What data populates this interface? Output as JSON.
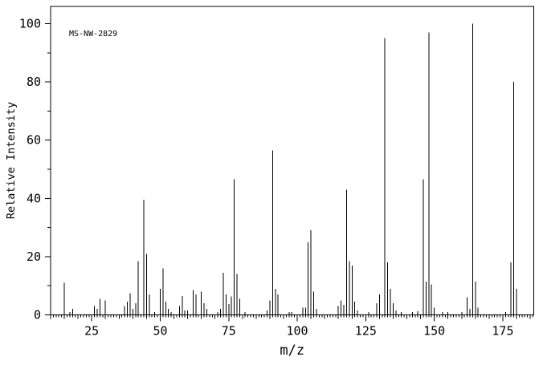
{
  "chart_data": {
    "type": "bar",
    "style": "mass-spectrum-stick-plot",
    "title": "",
    "annotation": "MS-NW-2829",
    "xlabel": "m/z",
    "ylabel": "Relative Intensity",
    "xlim": [
      10,
      186.3
    ],
    "ylim": [
      0,
      100
    ],
    "x_major_ticks": [
      25,
      50,
      75,
      100,
      125,
      150,
      175
    ],
    "x_minor_tick_step": 1,
    "x_medium_tick_step": 5,
    "y_major_ticks": [
      0,
      20,
      40,
      60,
      80,
      100
    ],
    "y_minor_tick_step": 10,
    "grid": false,
    "legend": null,
    "colors": {
      "line": "#000000",
      "background": "#ffffff"
    },
    "peaks": [
      [
        15,
        11
      ],
      [
        17,
        1
      ],
      [
        18,
        2
      ],
      [
        26,
        3
      ],
      [
        27,
        2
      ],
      [
        28,
        5.5
      ],
      [
        30,
        5
      ],
      [
        37,
        3
      ],
      [
        38,
        4.5
      ],
      [
        39,
        7.5
      ],
      [
        40,
        2
      ],
      [
        41,
        4
      ],
      [
        42,
        18.5
      ],
      [
        44,
        39.5
      ],
      [
        45,
        21
      ],
      [
        46,
        7
      ],
      [
        48,
        1
      ],
      [
        50,
        9
      ],
      [
        51,
        16
      ],
      [
        52,
        4.5
      ],
      [
        53,
        2
      ],
      [
        54,
        1
      ],
      [
        57,
        3
      ],
      [
        58,
        6.5
      ],
      [
        59,
        1.5
      ],
      [
        60,
        1.5
      ],
      [
        62,
        8.5
      ],
      [
        63,
        7
      ],
      [
        65,
        8
      ],
      [
        66,
        4
      ],
      [
        67,
        2
      ],
      [
        71,
        1
      ],
      [
        72,
        2
      ],
      [
        73,
        14.5
      ],
      [
        74,
        7
      ],
      [
        75,
        3.7
      ],
      [
        76,
        6.3
      ],
      [
        77,
        46.5
      ],
      [
        78,
        14
      ],
      [
        79,
        5.5
      ],
      [
        81,
        1
      ],
      [
        89,
        1.5
      ],
      [
        90,
        5
      ],
      [
        91,
        56.5
      ],
      [
        92,
        9
      ],
      [
        93,
        7
      ],
      [
        97,
        1
      ],
      [
        98,
        1
      ],
      [
        102,
        2.5
      ],
      [
        103,
        2.5
      ],
      [
        104,
        25
      ],
      [
        105,
        29
      ],
      [
        106,
        8
      ],
      [
        107,
        2
      ],
      [
        115,
        3
      ],
      [
        116,
        5
      ],
      [
        117,
        3.5
      ],
      [
        118,
        43
      ],
      [
        119,
        18.5
      ],
      [
        120,
        17
      ],
      [
        121,
        4.5
      ],
      [
        122,
        1.5
      ],
      [
        126,
        1
      ],
      [
        129,
        4
      ],
      [
        130,
        7
      ],
      [
        132,
        95
      ],
      [
        133,
        18
      ],
      [
        134,
        9
      ],
      [
        135,
        4
      ],
      [
        136,
        1.5
      ],
      [
        138,
        1
      ],
      [
        142,
        1
      ],
      [
        144,
        1.2
      ],
      [
        146,
        46.5
      ],
      [
        147,
        11.5
      ],
      [
        148,
        97
      ],
      [
        149,
        10.5
      ],
      [
        150,
        2.5
      ],
      [
        153,
        1
      ],
      [
        155,
        1
      ],
      [
        160,
        1
      ],
      [
        162,
        6
      ],
      [
        163,
        2
      ],
      [
        164,
        100
      ],
      [
        165,
        11.5
      ],
      [
        166,
        2.5
      ],
      [
        176,
        1
      ],
      [
        178,
        18
      ],
      [
        179,
        80
      ],
      [
        180,
        9
      ]
    ]
  },
  "layout_text": {
    "spectrum_id": "MS-NW-2829"
  }
}
